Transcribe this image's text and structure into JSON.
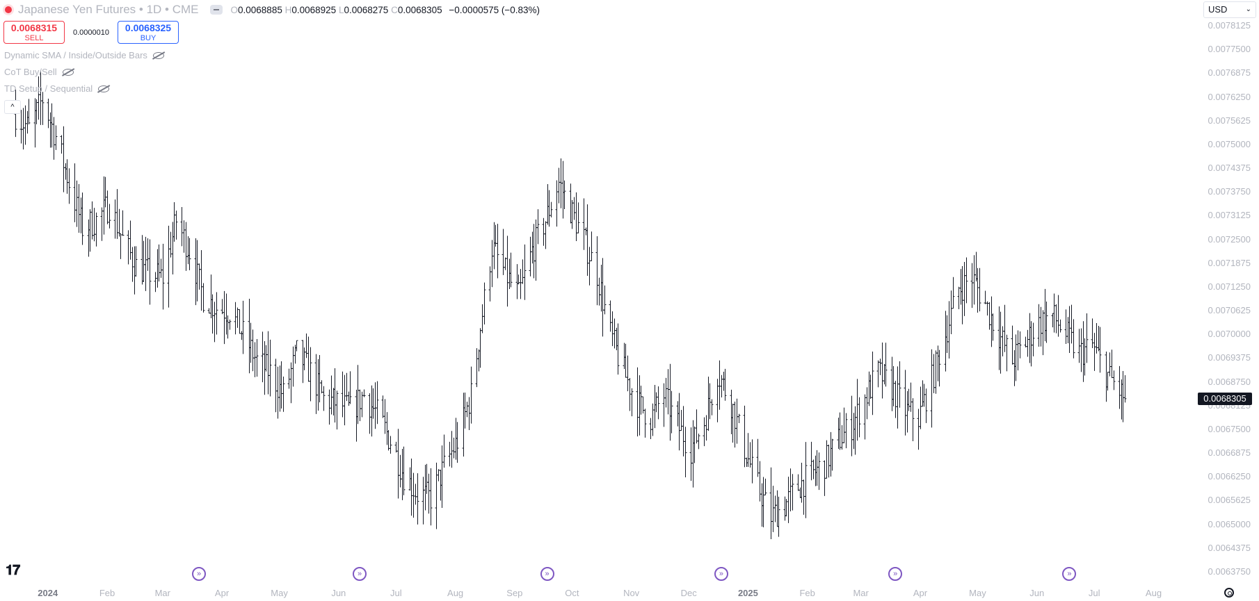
{
  "legend": {
    "title": "Japanese Yen Futures • 1D • CME",
    "o_key": "O",
    "o": "0.0068885",
    "h_key": "H",
    "h": "0.0068925",
    "l_key": "L",
    "l": "0.0068275",
    "c_key": "C",
    "c": "0.0068305",
    "change": "−0.0000575 (−0.83%)"
  },
  "trade": {
    "sell_price": "0.0068315",
    "sell_label": "SELL",
    "spread": "0.0000010",
    "buy_price": "0.0068325",
    "buy_label": "BUY"
  },
  "indicators": [
    "Dynamic SMA / Inside/Outside Bars",
    "CoT Buy/Sell",
    "TD Setup / Sequential"
  ],
  "collapse_label": "^",
  "currency": {
    "value": "USD",
    "chevron": "⌄"
  },
  "last_price": "0.0068305",
  "colors": {
    "bars": "#131722",
    "event": "#7e57c2",
    "sell": "#f23645",
    "buy": "#2962ff"
  },
  "chart_data": {
    "type": "ohlc",
    "symbol": "Japanese Yen Futures",
    "interval": "1D",
    "exchange": "CME",
    "y_ticks": [
      "0.0078125",
      "0.0077500",
      "0.0076875",
      "0.0076250",
      "0.0075625",
      "0.0075000",
      "0.0074375",
      "0.0073750",
      "0.0073125",
      "0.0072500",
      "0.0071875",
      "0.0071250",
      "0.0070625",
      "0.0070000",
      "0.0069375",
      "0.0068750",
      "0.0068125",
      "0.0067500",
      "0.0066875",
      "0.0066250",
      "0.0065625",
      "0.0065000",
      "0.0064375",
      "0.0063750"
    ],
    "ylim": [
      0.006362,
      0.00784
    ],
    "x_labels": [
      {
        "label": "2024",
        "year": true,
        "date": "2024-01-01"
      },
      {
        "label": "Feb",
        "date": "2024-02-01"
      },
      {
        "label": "Mar",
        "date": "2024-03-01"
      },
      {
        "label": "Apr",
        "date": "2024-04-01"
      },
      {
        "label": "May",
        "date": "2024-05-01"
      },
      {
        "label": "Jun",
        "date": "2024-06-01"
      },
      {
        "label": "Jul",
        "date": "2024-07-01"
      },
      {
        "label": "Aug",
        "date": "2024-08-01"
      },
      {
        "label": "Sep",
        "date": "2024-09-01"
      },
      {
        "label": "Oct",
        "date": "2024-10-01"
      },
      {
        "label": "Nov",
        "date": "2024-11-01"
      },
      {
        "label": "Dec",
        "date": "2024-12-01"
      },
      {
        "label": "2025",
        "year": true,
        "date": "2025-01-01"
      },
      {
        "label": "Feb",
        "date": "2025-02-01"
      },
      {
        "label": "Mar",
        "date": "2025-03-01"
      },
      {
        "label": "Apr",
        "date": "2025-04-01"
      },
      {
        "label": "May",
        "date": "2025-05-01"
      },
      {
        "label": "Jun",
        "date": "2025-06-01"
      },
      {
        "label": "Jul",
        "date": "2025-07-01"
      },
      {
        "label": "Aug",
        "date": "2025-08-01"
      }
    ],
    "events": [
      "2024-03-20",
      "2024-06-12",
      "2024-09-18",
      "2024-12-18",
      "2025-03-19",
      "2025-06-18"
    ],
    "close_path": [
      [
        "2023-12-15",
        0.00758
      ],
      [
        "2023-12-22",
        0.00754
      ],
      [
        "2023-12-29",
        0.00762
      ],
      [
        "2024-01-05",
        0.00752
      ],
      [
        "2024-01-12",
        0.0074
      ],
      [
        "2024-01-19",
        0.00728
      ],
      [
        "2024-01-26",
        0.0073
      ],
      [
        "2024-02-02",
        0.00734
      ],
      [
        "2024-02-09",
        0.00725
      ],
      [
        "2024-02-16",
        0.00718
      ],
      [
        "2024-02-23",
        0.00716
      ],
      [
        "2024-03-01",
        0.00715
      ],
      [
        "2024-03-08",
        0.0073
      ],
      [
        "2024-03-15",
        0.00722
      ],
      [
        "2024-03-22",
        0.0071
      ],
      [
        "2024-03-29",
        0.00707
      ],
      [
        "2024-04-05",
        0.00706
      ],
      [
        "2024-04-12",
        0.007
      ],
      [
        "2024-04-19",
        0.00693
      ],
      [
        "2024-04-26",
        0.0069
      ],
      [
        "2024-05-03",
        0.00684
      ],
      [
        "2024-05-10",
        0.00695
      ],
      [
        "2024-05-17",
        0.0069
      ],
      [
        "2024-05-24",
        0.00683
      ],
      [
        "2024-05-31",
        0.00682
      ],
      [
        "2024-06-07",
        0.0068
      ],
      [
        "2024-06-14",
        0.00684
      ],
      [
        "2024-06-21",
        0.00679
      ],
      [
        "2024-06-28",
        0.00672
      ],
      [
        "2024-07-05",
        0.00663
      ],
      [
        "2024-07-12",
        0.00658
      ],
      [
        "2024-07-19",
        0.00657
      ],
      [
        "2024-07-26",
        0.00665
      ],
      [
        "2024-08-02",
        0.00672
      ],
      [
        "2024-08-09",
        0.00684
      ],
      [
        "2024-08-14",
        0.00702
      ],
      [
        "2024-08-20",
        0.00723
      ],
      [
        "2024-08-27",
        0.00716
      ],
      [
        "2024-09-03",
        0.0071
      ],
      [
        "2024-09-10",
        0.00722
      ],
      [
        "2024-09-17",
        0.0073
      ],
      [
        "2024-09-24",
        0.0074
      ],
      [
        "2024-09-30",
        0.00733
      ],
      [
        "2024-10-07",
        0.00725
      ],
      [
        "2024-10-14",
        0.00716
      ],
      [
        "2024-10-21",
        0.007
      ],
      [
        "2024-10-28",
        0.0069
      ],
      [
        "2024-11-04",
        0.00682
      ],
      [
        "2024-11-11",
        0.00678
      ],
      [
        "2024-11-18",
        0.00684
      ],
      [
        "2024-11-25",
        0.00676
      ],
      [
        "2024-12-02",
        0.0067
      ],
      [
        "2024-12-09",
        0.00677
      ],
      [
        "2024-12-16",
        0.0069
      ],
      [
        "2024-12-23",
        0.00682
      ],
      [
        "2024-12-30",
        0.0067
      ],
      [
        "2025-01-06",
        0.0066
      ],
      [
        "2025-01-13",
        0.00652
      ],
      [
        "2025-01-20",
        0.00655
      ],
      [
        "2025-01-27",
        0.0066
      ],
      [
        "2025-02-03",
        0.00663
      ],
      [
        "2025-02-10",
        0.00666
      ],
      [
        "2025-02-17",
        0.00672
      ],
      [
        "2025-02-24",
        0.00676
      ],
      [
        "2025-03-03",
        0.00683
      ],
      [
        "2025-03-10",
        0.0069
      ],
      [
        "2025-03-17",
        0.00686
      ],
      [
        "2025-03-24",
        0.0068
      ],
      [
        "2025-03-31",
        0.00678
      ],
      [
        "2025-04-07",
        0.00688
      ],
      [
        "2025-04-14",
        0.007
      ],
      [
        "2025-04-21",
        0.00712
      ],
      [
        "2025-04-28",
        0.00715
      ],
      [
        "2025-05-05",
        0.00708
      ],
      [
        "2025-05-12",
        0.007
      ],
      [
        "2025-05-19",
        0.00693
      ],
      [
        "2025-05-26",
        0.00698
      ],
      [
        "2025-06-02",
        0.00703
      ],
      [
        "2025-06-09",
        0.00705
      ],
      [
        "2025-06-16",
        0.007
      ],
      [
        "2025-06-23",
        0.00695
      ],
      [
        "2025-06-30",
        0.00697
      ],
      [
        "2025-07-07",
        0.0069
      ],
      [
        "2025-07-14",
        0.00685
      ],
      [
        "2025-07-17",
        0.0068305
      ]
    ],
    "last_close": 0.0068305,
    "x_start": "2023-12-07",
    "x_end": "2025-08-19",
    "grid": false,
    "legend_position": "top-left"
  }
}
